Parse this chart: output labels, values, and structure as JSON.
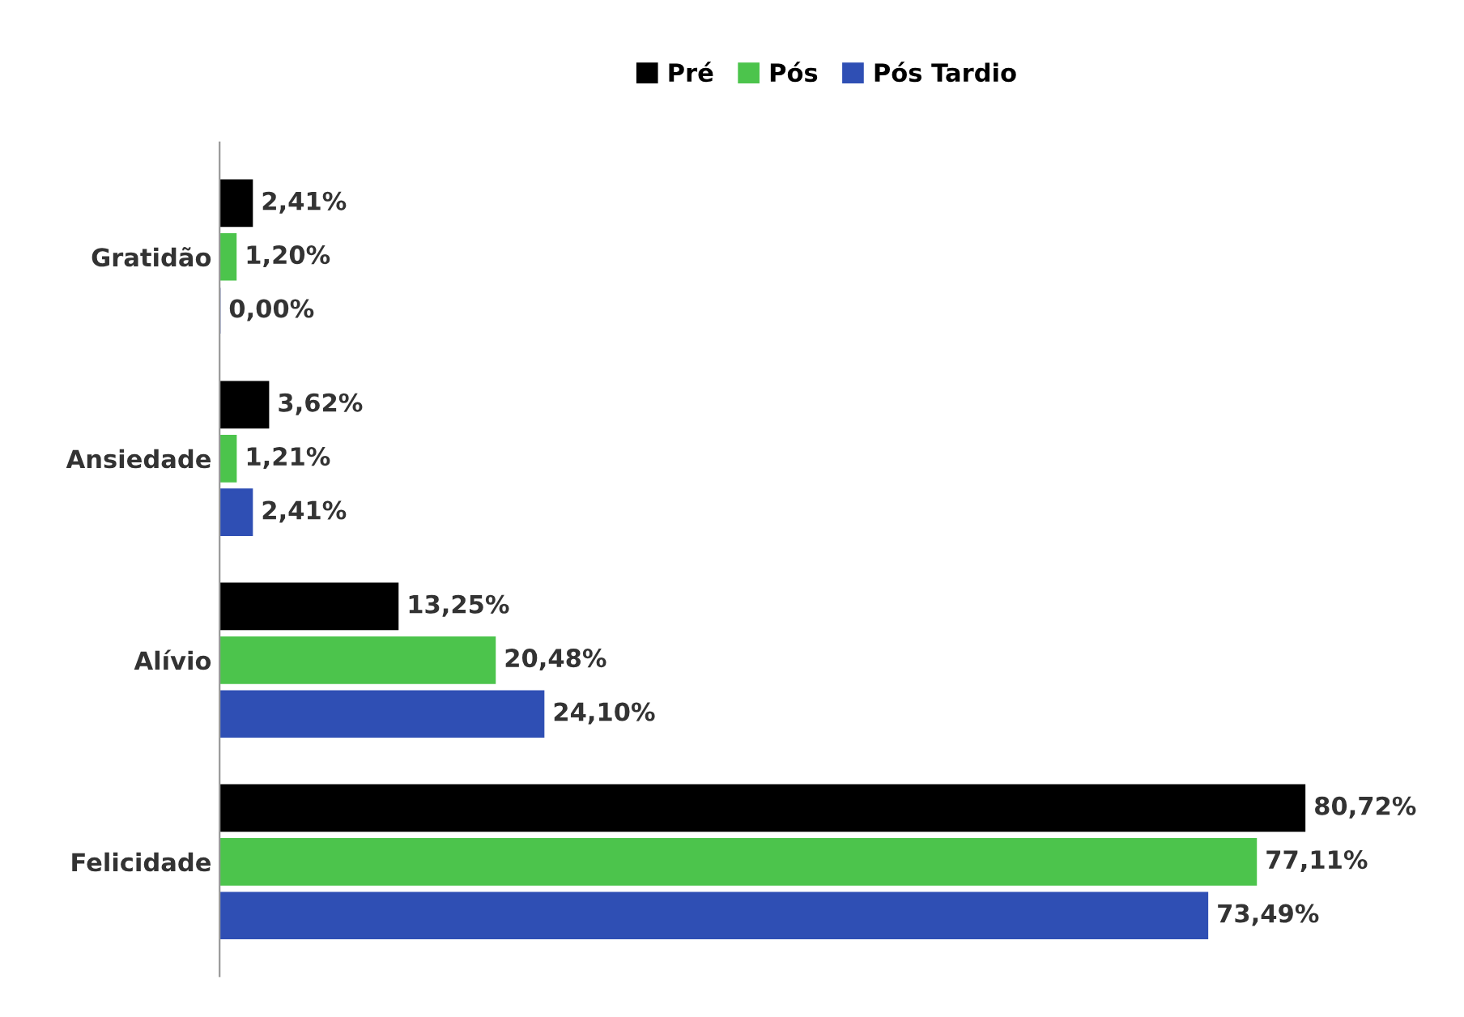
{
  "chart_data": {
    "type": "bar",
    "orientation": "horizontal",
    "categories": [
      "Gratidão",
      "Ansiedade",
      "Alívio",
      "Felicidade"
    ],
    "series": [
      {
        "name": "Pré",
        "color": "#000000",
        "values": [
          2.41,
          3.62,
          13.25,
          80.72
        ],
        "value_labels": [
          "2,41%",
          "3,62%",
          "13,25%",
          "80,72%"
        ]
      },
      {
        "name": "Pós",
        "color": "#4cc44c",
        "values": [
          1.2,
          1.21,
          20.48,
          77.11
        ],
        "value_labels": [
          "1,20%",
          "1,21%",
          "20,48%",
          "77,11%"
        ]
      },
      {
        "name": "Pós Tardio",
        "color": "#2f4fb4",
        "values": [
          0.0,
          2.41,
          24.1,
          73.49
        ],
        "value_labels": [
          "0,00%",
          "2,41%",
          "24,10%",
          "73,49%"
        ]
      }
    ],
    "legend": "top",
    "grid": false,
    "tick_labels": "y"
  }
}
